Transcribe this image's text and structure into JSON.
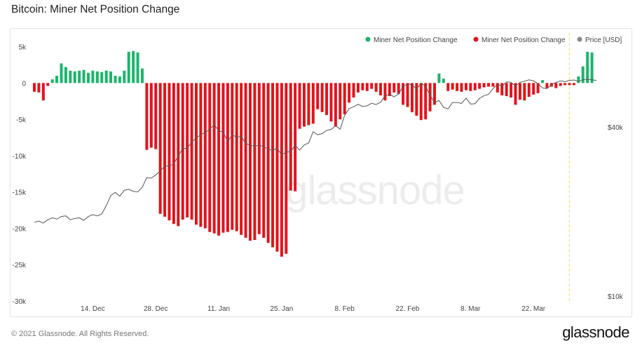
{
  "title": "Bitcoin: Miner Net Position Change",
  "footer": "© 2021 Glassnode. All Rights Reserved.",
  "brand": "glassnode",
  "watermark": "glassnode",
  "colors": {
    "positive": "#1bb56b",
    "negative": "#e0141b",
    "price": "#555555",
    "highlight": "#f0e27a"
  },
  "chart_data": {
    "type": "bar",
    "legend": [
      {
        "label": "Miner Net Position Change",
        "color": "#1bb56b",
        "icon": "dot"
      },
      {
        "label": "Miner Net Position Change",
        "color": "#e0141b",
        "icon": "dot"
      },
      {
        "label": "Price [USD]",
        "color": "#888888",
        "icon": "dot"
      }
    ],
    "y_ticks": [
      "5k",
      "0",
      "-5k",
      "-10k",
      "-15k",
      "-20k",
      "-25k",
      "-30k"
    ],
    "y_tick_values": [
      5000,
      0,
      -5000,
      -10000,
      -15000,
      -20000,
      -25000,
      -30000
    ],
    "ylim": [
      -30000,
      6500
    ],
    "price_ticks": [
      "$40k",
      "$10k"
    ],
    "price_tick_values": [
      40000,
      10000
    ],
    "x_ticks": [
      {
        "label": "14. Dec",
        "day": 14
      },
      {
        "label": "28. Dec",
        "day": 28
      },
      {
        "label": "11. Jan",
        "day": 42
      },
      {
        "label": "25. Jan",
        "day": 56
      },
      {
        "label": "8. Feb",
        "day": 70
      },
      {
        "label": "22. Feb",
        "day": 84
      },
      {
        "label": "8. Mar",
        "day": 98
      },
      {
        "label": "22. Mar",
        "day": 112
      }
    ],
    "x_start_day": 1,
    "x_end_day": 126,
    "highlight_day": 120,
    "net_position_change": [
      -1200,
      -1300,
      -2400,
      -400,
      500,
      1000,
      2700,
      2200,
      1700,
      1600,
      1700,
      1800,
      1400,
      1700,
      1600,
      1500,
      1700,
      1600,
      1000,
      900,
      1700,
      4300,
      4400,
      4200,
      2000,
      -9200,
      -8900,
      -9100,
      -18000,
      -18400,
      -18900,
      -19400,
      -19700,
      -18800,
      -18500,
      -18800,
      -19500,
      -19800,
      -20000,
      -20500,
      -20700,
      -21000,
      -20600,
      -20500,
      -20200,
      -20400,
      -20900,
      -21300,
      -21700,
      -21600,
      -20800,
      -21300,
      -22000,
      -22600,
      -23200,
      -23900,
      -23500,
      -14800,
      -14900,
      -6300,
      -6000,
      -5800,
      -5600,
      -3600,
      -4000,
      -4400,
      -5300,
      -6000,
      -5000,
      -4300,
      -2700,
      -2000,
      -1300,
      -1000,
      -1100,
      -800,
      -1200,
      -1700,
      -2400,
      -1800,
      -1300,
      -1500,
      -3000,
      -3300,
      -4000,
      -4500,
      -5100,
      -5000,
      -3900,
      -3000,
      1300,
      600,
      -1100,
      -900,
      -1100,
      -1200,
      -1000,
      -1100,
      -1000,
      -800,
      -600,
      -500,
      -500,
      -1300,
      -1700,
      -1800,
      -2000,
      -3000,
      -2300,
      -2400,
      -1900,
      -1600,
      -1400,
      400,
      -700,
      -500,
      -700,
      -400,
      -300,
      -300,
      -300,
      900,
      2300,
      4300,
      4200
    ],
    "price": [
      18300,
      18500,
      18200,
      18700,
      19000,
      18800,
      19200,
      19300,
      18700,
      18900,
      19000,
      18600,
      19200,
      19500,
      19300,
      19600,
      21000,
      22800,
      23400,
      22700,
      23800,
      24000,
      23600,
      23500,
      24400,
      26400,
      26300,
      27000,
      27900,
      29000,
      29100,
      29500,
      31600,
      33500,
      33600,
      35400,
      36500,
      37600,
      38200,
      39200,
      40800,
      38800,
      38300,
      35500,
      37500,
      36800,
      37000,
      35000,
      34400,
      34200,
      34500,
      34000,
      33400,
      33000,
      33600,
      31800,
      32600,
      32600,
      34500,
      33100,
      34500,
      35100,
      38500,
      37500,
      37900,
      38900,
      39200,
      40400,
      39300,
      44000,
      46500,
      47200,
      48200,
      47300,
      47600,
      48600,
      48100,
      49000,
      51700,
      52300,
      51200,
      52400,
      55900,
      56900,
      56600,
      54500,
      57300,
      55900,
      51800,
      48900,
      49700,
      47000,
      46400,
      48900,
      48900,
      48500,
      50700,
      48300,
      48400,
      50600,
      51700,
      52300,
      54800,
      56800,
      55800,
      57900,
      57700,
      55900,
      57700,
      58200,
      58900,
      58400,
      57000,
      55100,
      54800,
      56600,
      57600,
      58400,
      58000,
      58600,
      58800,
      58100,
      59000,
      59200,
      58900,
      58600
    ]
  }
}
